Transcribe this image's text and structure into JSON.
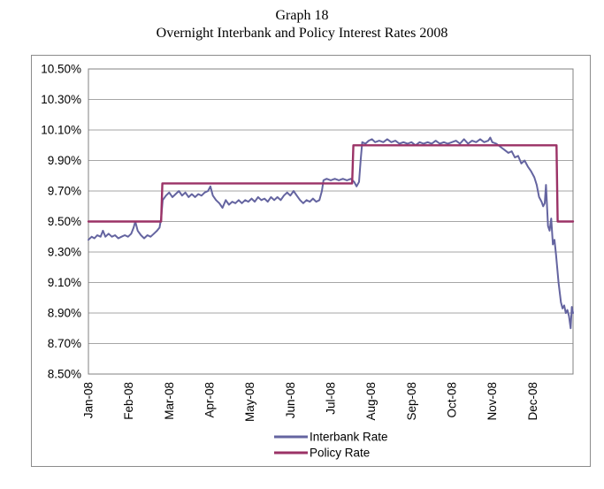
{
  "page": {
    "title_line1": "Graph 18",
    "title_line2": "Overnight Interbank and Policy Interest Rates 2008"
  },
  "colors": {
    "interbank": "#6464A0",
    "policy": "#9B3266",
    "grid": "#A6A6A6",
    "axis": "#808080",
    "frame": "#8C8C8C",
    "text": "#000000",
    "background": "#FFFFFF"
  },
  "chart_data": {
    "type": "line",
    "title": "Graph 18",
    "subtitle": "Overnight Interbank and Policy Interest Rates 2008",
    "grid": true,
    "legend_position": "bottom",
    "x_categories": [
      "Jan-08",
      "Feb-08",
      "Mar-08",
      "Apr-08",
      "May-08",
      "Jun-08",
      "Jul-08",
      "Aug-08",
      "Sep-08",
      "Oct-08",
      "Nov-08",
      "Dec-08"
    ],
    "x_range_months": [
      0,
      12
    ],
    "y_axis": {
      "min": 8.5,
      "max": 10.5,
      "step": 0.2,
      "format": "percent",
      "tick_labels": [
        "10.50%",
        "10.30%",
        "10.10%",
        "9.90%",
        "9.70%",
        "9.50%",
        "9.30%",
        "9.10%",
        "8.90%",
        "8.70%",
        "8.50%"
      ]
    },
    "series": [
      {
        "name": "Interbank Rate",
        "color": "#6464A0",
        "points": [
          [
            0.0,
            9.38
          ],
          [
            0.08,
            9.4
          ],
          [
            0.15,
            9.39
          ],
          [
            0.22,
            9.41
          ],
          [
            0.3,
            9.4
          ],
          [
            0.36,
            9.44
          ],
          [
            0.42,
            9.4
          ],
          [
            0.5,
            9.42
          ],
          [
            0.58,
            9.4
          ],
          [
            0.66,
            9.41
          ],
          [
            0.74,
            9.39
          ],
          [
            0.82,
            9.4
          ],
          [
            0.9,
            9.41
          ],
          [
            0.98,
            9.4
          ],
          [
            1.06,
            9.42
          ],
          [
            1.12,
            9.46
          ],
          [
            1.16,
            9.5
          ],
          [
            1.22,
            9.44
          ],
          [
            1.3,
            9.41
          ],
          [
            1.38,
            9.39
          ],
          [
            1.46,
            9.41
          ],
          [
            1.54,
            9.4
          ],
          [
            1.62,
            9.42
          ],
          [
            1.7,
            9.44
          ],
          [
            1.76,
            9.46
          ],
          [
            1.8,
            9.52
          ],
          [
            1.84,
            9.64
          ],
          [
            1.92,
            9.67
          ],
          [
            2.0,
            9.69
          ],
          [
            2.08,
            9.66
          ],
          [
            2.16,
            9.68
          ],
          [
            2.24,
            9.7
          ],
          [
            2.32,
            9.67
          ],
          [
            2.4,
            9.69
          ],
          [
            2.48,
            9.66
          ],
          [
            2.56,
            9.68
          ],
          [
            2.64,
            9.66
          ],
          [
            2.72,
            9.68
          ],
          [
            2.8,
            9.67
          ],
          [
            2.88,
            9.69
          ],
          [
            2.96,
            9.7
          ],
          [
            3.02,
            9.73
          ],
          [
            3.08,
            9.67
          ],
          [
            3.16,
            9.64
          ],
          [
            3.24,
            9.62
          ],
          [
            3.32,
            9.59
          ],
          [
            3.4,
            9.64
          ],
          [
            3.48,
            9.61
          ],
          [
            3.56,
            9.63
          ],
          [
            3.64,
            9.62
          ],
          [
            3.72,
            9.64
          ],
          [
            3.8,
            9.62
          ],
          [
            3.88,
            9.64
          ],
          [
            3.96,
            9.63
          ],
          [
            4.04,
            9.65
          ],
          [
            4.12,
            9.63
          ],
          [
            4.2,
            9.66
          ],
          [
            4.28,
            9.64
          ],
          [
            4.36,
            9.65
          ],
          [
            4.44,
            9.63
          ],
          [
            4.52,
            9.66
          ],
          [
            4.6,
            9.64
          ],
          [
            4.68,
            9.66
          ],
          [
            4.76,
            9.64
          ],
          [
            4.84,
            9.67
          ],
          [
            4.92,
            9.69
          ],
          [
            5.0,
            9.67
          ],
          [
            5.08,
            9.7
          ],
          [
            5.16,
            9.67
          ],
          [
            5.24,
            9.64
          ],
          [
            5.32,
            9.62
          ],
          [
            5.4,
            9.64
          ],
          [
            5.48,
            9.63
          ],
          [
            5.56,
            9.65
          ],
          [
            5.64,
            9.63
          ],
          [
            5.72,
            9.64
          ],
          [
            5.78,
            9.7
          ],
          [
            5.82,
            9.77
          ],
          [
            5.9,
            9.78
          ],
          [
            6.0,
            9.77
          ],
          [
            6.1,
            9.78
          ],
          [
            6.2,
            9.77
          ],
          [
            6.3,
            9.78
          ],
          [
            6.4,
            9.77
          ],
          [
            6.5,
            9.78
          ],
          [
            6.58,
            9.76
          ],
          [
            6.64,
            9.73
          ],
          [
            6.7,
            9.76
          ],
          [
            6.74,
            9.9
          ],
          [
            6.78,
            10.02
          ],
          [
            6.86,
            10.01
          ],
          [
            6.94,
            10.03
          ],
          [
            7.02,
            10.04
          ],
          [
            7.1,
            10.02
          ],
          [
            7.2,
            10.03
          ],
          [
            7.3,
            10.02
          ],
          [
            7.4,
            10.04
          ],
          [
            7.5,
            10.02
          ],
          [
            7.6,
            10.03
          ],
          [
            7.7,
            10.01
          ],
          [
            7.8,
            10.02
          ],
          [
            7.9,
            10.01
          ],
          [
            8.0,
            10.02
          ],
          [
            8.1,
            10.0
          ],
          [
            8.2,
            10.02
          ],
          [
            8.3,
            10.01
          ],
          [
            8.4,
            10.02
          ],
          [
            8.5,
            10.01
          ],
          [
            8.6,
            10.03
          ],
          [
            8.7,
            10.01
          ],
          [
            8.8,
            10.02
          ],
          [
            8.9,
            10.01
          ],
          [
            9.0,
            10.02
          ],
          [
            9.1,
            10.03
          ],
          [
            9.2,
            10.01
          ],
          [
            9.3,
            10.04
          ],
          [
            9.4,
            10.01
          ],
          [
            9.5,
            10.03
          ],
          [
            9.6,
            10.02
          ],
          [
            9.7,
            10.04
          ],
          [
            9.8,
            10.02
          ],
          [
            9.9,
            10.03
          ],
          [
            9.95,
            10.05
          ],
          [
            10.0,
            10.02
          ],
          [
            10.1,
            10.01
          ],
          [
            10.2,
            9.99
          ],
          [
            10.3,
            9.97
          ],
          [
            10.4,
            9.95
          ],
          [
            10.48,
            9.96
          ],
          [
            10.56,
            9.92
          ],
          [
            10.64,
            9.93
          ],
          [
            10.72,
            9.88
          ],
          [
            10.8,
            9.9
          ],
          [
            10.88,
            9.86
          ],
          [
            10.96,
            9.83
          ],
          [
            11.04,
            9.79
          ],
          [
            11.1,
            9.74
          ],
          [
            11.16,
            9.66
          ],
          [
            11.22,
            9.63
          ],
          [
            11.26,
            9.6
          ],
          [
            11.3,
            9.62
          ],
          [
            11.33,
            9.74
          ],
          [
            11.38,
            9.47
          ],
          [
            11.42,
            9.44
          ],
          [
            11.46,
            9.52
          ],
          [
            11.5,
            9.35
          ],
          [
            11.54,
            9.38
          ],
          [
            11.58,
            9.28
          ],
          [
            11.64,
            9.1
          ],
          [
            11.7,
            8.97
          ],
          [
            11.74,
            8.93
          ],
          [
            11.78,
            8.95
          ],
          [
            11.82,
            8.9
          ],
          [
            11.86,
            8.92
          ],
          [
            11.9,
            8.88
          ],
          [
            11.94,
            8.8
          ],
          [
            11.97,
            8.94
          ],
          [
            12.0,
            8.9
          ]
        ]
      },
      {
        "name": "Policy Rate",
        "color": "#9B3266",
        "points": [
          [
            0.0,
            9.5
          ],
          [
            1.8,
            9.5
          ],
          [
            1.83,
            9.75
          ],
          [
            6.53,
            9.75
          ],
          [
            6.56,
            10.0
          ],
          [
            11.59,
            10.0
          ],
          [
            11.62,
            9.5
          ],
          [
            12.0,
            9.5
          ]
        ]
      }
    ]
  }
}
